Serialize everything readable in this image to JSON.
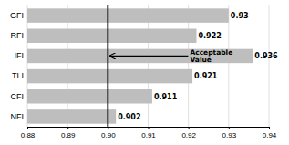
{
  "chart_data": {
    "type": "bar",
    "orientation": "horizontal",
    "categories": [
      "GFI",
      "RFI",
      "IFI",
      "TLI",
      "CFI",
      "NFI"
    ],
    "values": [
      0.93,
      0.922,
      0.936,
      0.921,
      0.911,
      0.902
    ],
    "value_labels": [
      "0.93",
      "0.922",
      "0.936",
      "0.921",
      "0.911",
      "0.902"
    ],
    "data_labels": true,
    "color": "#bebebe",
    "xlim": [
      0.88,
      0.94
    ],
    "xticks": [
      0.88,
      0.89,
      {
        "value": 0.9,
        "label": "0.90"
      },
      0.91,
      0.92,
      0.93,
      0.94
    ],
    "grid": true,
    "annotations": [
      {
        "text": "Acceptable\nValue",
        "x": 0.9,
        "category": "IFI"
      }
    ]
  }
}
